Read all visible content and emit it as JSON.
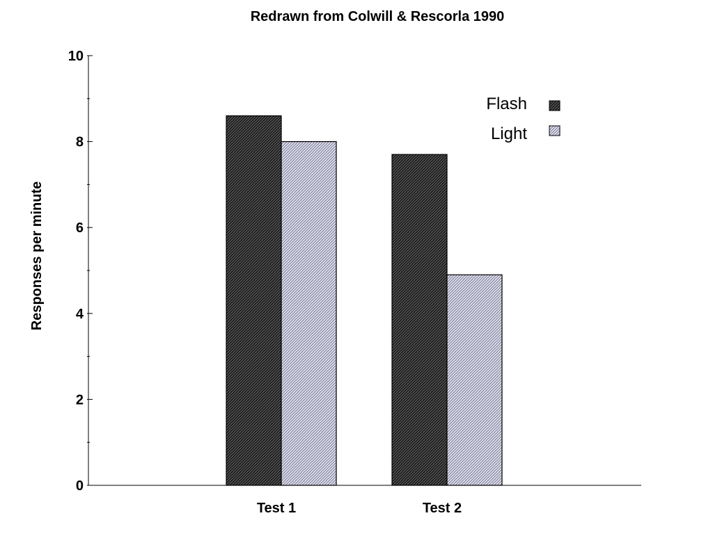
{
  "chart_data": {
    "type": "bar",
    "title": "Redrawn from Colwill & Rescorla 1990",
    "xlabel": "",
    "ylabel": "Responses per minute",
    "categories": [
      "Test 1",
      "Test 2"
    ],
    "series": [
      {
        "name": "Flash",
        "values": [
          8.6,
          7.7
        ],
        "pattern": "dark-hatch",
        "color": "#333333"
      },
      {
        "name": "Light",
        "values": [
          8.0,
          4.9
        ],
        "pattern": "light-hatch",
        "color": "#8a8aa8"
      }
    ],
    "ylim": [
      0,
      10
    ],
    "yticks": [
      0,
      2,
      4,
      6,
      8,
      10
    ],
    "grid": false,
    "legend_position": "top-right"
  }
}
